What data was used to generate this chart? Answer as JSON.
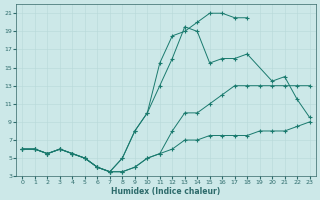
{
  "title": "",
  "xlabel": "Humidex (Indice chaleur)",
  "bg_color": "#cce8e8",
  "line_color": "#1a7a6e",
  "grid_color": "#aacccc",
  "xlim": [
    -0.5,
    23.5
  ],
  "ylim": [
    3,
    22
  ],
  "xticks": [
    0,
    1,
    2,
    3,
    4,
    5,
    6,
    7,
    8,
    9,
    10,
    11,
    12,
    13,
    14,
    15,
    16,
    17,
    18,
    19,
    20,
    21,
    22,
    23
  ],
  "yticks": [
    3,
    5,
    7,
    9,
    11,
    13,
    15,
    17,
    19,
    21
  ],
  "lines": [
    {
      "x": [
        0,
        1,
        2,
        3,
        4,
        5,
        6,
        7,
        8,
        9,
        10,
        11,
        12,
        13,
        14,
        15,
        16,
        17,
        18,
        19,
        20,
        21,
        22,
        23
      ],
      "y": [
        6,
        6,
        5.5,
        6,
        5.5,
        5,
        4,
        3.5,
        3.5,
        4,
        5,
        5.5,
        6,
        7,
        7,
        7.5,
        7.5,
        7.5,
        7.5,
        8,
        8,
        8,
        8.5,
        9
      ]
    },
    {
      "x": [
        0,
        1,
        2,
        3,
        4,
        5,
        6,
        7,
        8,
        9,
        10,
        11,
        12,
        13,
        14,
        15,
        16,
        17,
        18,
        19,
        20,
        21,
        22,
        23
      ],
      "y": [
        6,
        6,
        5.5,
        6,
        5.5,
        5,
        4,
        3.5,
        3.5,
        4,
        5,
        5.5,
        8,
        10,
        10,
        11,
        12,
        13,
        13,
        13,
        13,
        13,
        13,
        13
      ]
    },
    {
      "x": [
        0,
        1,
        2,
        3,
        4,
        5,
        6,
        7,
        8,
        9,
        10,
        11,
        12,
        13,
        14,
        15,
        16,
        17,
        18,
        20,
        21,
        22,
        23
      ],
      "y": [
        6,
        6,
        5.5,
        6,
        5.5,
        5,
        4,
        3.5,
        5,
        8,
        10,
        13,
        16,
        19.5,
        19,
        15.5,
        16,
        16,
        16.5,
        13.5,
        14,
        11.5,
        9.5
      ]
    },
    {
      "x": [
        0,
        1,
        2,
        3,
        4,
        5,
        6,
        7,
        8,
        9,
        10,
        11,
        12,
        13,
        14,
        15,
        16,
        17,
        18
      ],
      "y": [
        6,
        6,
        5.5,
        6,
        5.5,
        5,
        4,
        3.5,
        5,
        8,
        10,
        15.5,
        18.5,
        19,
        20,
        21,
        21,
        20.5,
        20.5
      ]
    }
  ]
}
